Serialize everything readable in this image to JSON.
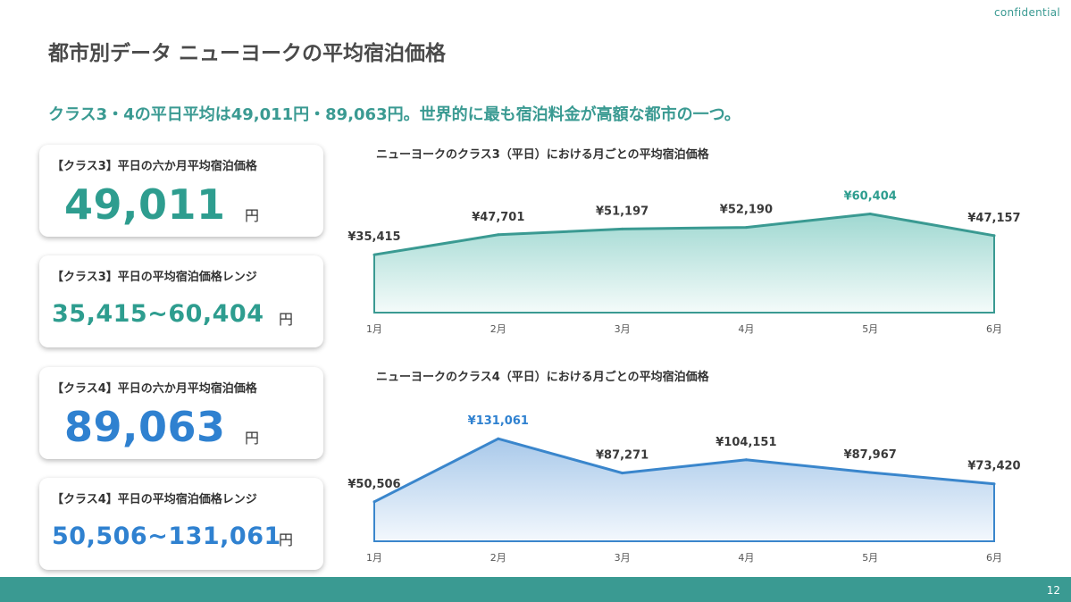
{
  "header": {
    "confidential": "confidential",
    "title": "都市別データ ニューヨークの平均宿泊価格",
    "subtitle": "クラス3・4の平日平均は49,011円・89,063円。世界的に最も宿泊料金が高額な都市の一つ。"
  },
  "cards": [
    {
      "label": "【クラス3】平日の六か月平均宿泊価格",
      "value": "49,011",
      "unit": "円"
    },
    {
      "label": "【クラス3】平日の平均宿泊価格レンジ",
      "value": "35,415~60,404",
      "unit": "円"
    },
    {
      "label": "【クラス4】平日の六か月平均宿泊価格",
      "value": "89,063",
      "unit": "円"
    },
    {
      "label": "【クラス4】平日の平均宿泊価格レンジ",
      "value": "50,506~131,061",
      "unit": "円"
    }
  ],
  "colors": {
    "teal": "#3a9a92",
    "teal_line": "#3a9a92",
    "blue_line": "#3a86cc",
    "highlight_teal": "#2e9d8f",
    "highlight_blue": "#2f81d0"
  },
  "chart_data": [
    {
      "type": "area",
      "title": "ニューヨークのクラス3（平日）における月ごとの平均宿泊価格",
      "categories": [
        "1月",
        "2月",
        "3月",
        "4月",
        "5月",
        "6月"
      ],
      "values": [
        35415,
        47701,
        51197,
        52190,
        60404,
        47157
      ],
      "data_labels": [
        "¥35,415",
        "¥47,701",
        "¥51,197",
        "¥52,190",
        "¥60,404",
        "¥47,157"
      ],
      "highlight_index": 4,
      "ylim": [
        0,
        70000
      ],
      "grid": false
    },
    {
      "type": "area",
      "title": "ニューヨークのクラス4（平日）における月ごとの平均宿泊価格",
      "categories": [
        "1月",
        "2月",
        "3月",
        "4月",
        "5月",
        "6月"
      ],
      "values": [
        50506,
        131061,
        87271,
        104151,
        87967,
        73420
      ],
      "data_labels": [
        "¥50,506",
        "¥131,061",
        "¥87,271",
        "¥104,151",
        "¥87,967",
        "¥73,420"
      ],
      "highlight_index": 1,
      "ylim": [
        0,
        145000
      ],
      "grid": false
    }
  ],
  "footer": {
    "page_number": "12"
  }
}
